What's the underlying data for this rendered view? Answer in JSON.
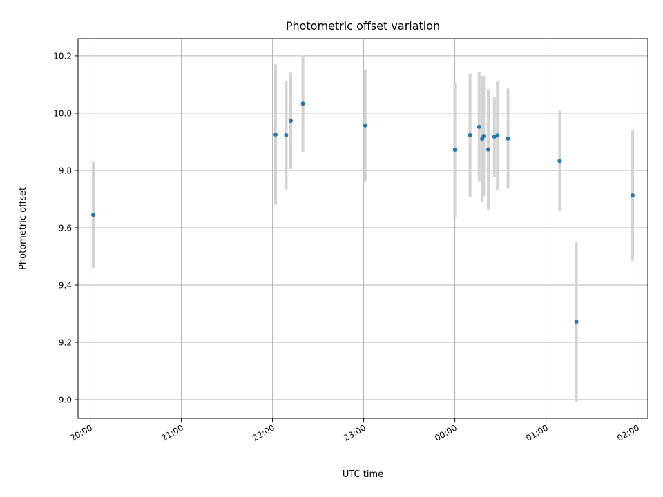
{
  "chart_data": {
    "type": "scatter",
    "title": "Photometric offset variation",
    "xlabel": "UTC time",
    "ylabel": "Photometric offset",
    "xlim": [
      "19:52",
      "02:07"
    ],
    "ylim": [
      8.935,
      10.26
    ],
    "x_ticks": [
      "20:00",
      "21:00",
      "22:00",
      "23:00",
      "00:00",
      "01:00",
      "02:00"
    ],
    "y_ticks": [
      "9.0",
      "9.2",
      "9.4",
      "9.6",
      "9.8",
      "10.0",
      "10.2"
    ],
    "grid": true,
    "colors": {
      "points": "#1f77b4",
      "errorbars": "#d3d3d3",
      "grid": "#b0b0b0"
    },
    "points": [
      {
        "x": "20:02",
        "y": 9.645,
        "err": 0.185
      },
      {
        "x": "22:02",
        "y": 9.925,
        "err": 0.245
      },
      {
        "x": "22:09",
        "y": 9.923,
        "err": 0.19
      },
      {
        "x": "22:12",
        "y": 9.973,
        "err": 0.168
      },
      {
        "x": "22:20",
        "y": 10.033,
        "err": 0.168
      },
      {
        "x": "23:01",
        "y": 9.957,
        "err": 0.195
      },
      {
        "x": "00:00",
        "y": 9.872,
        "err": 0.235
      },
      {
        "x": "00:10",
        "y": 9.923,
        "err": 0.215
      },
      {
        "x": "00:16",
        "y": 9.952,
        "err": 0.19
      },
      {
        "x": "00:18",
        "y": 9.91,
        "err": 0.22
      },
      {
        "x": "00:19",
        "y": 9.92,
        "err": 0.21
      },
      {
        "x": "00:22",
        "y": 9.873,
        "err": 0.21
      },
      {
        "x": "00:26",
        "y": 9.918,
        "err": 0.14
      },
      {
        "x": "00:28",
        "y": 9.922,
        "err": 0.19
      },
      {
        "x": "00:35",
        "y": 9.911,
        "err": 0.175
      },
      {
        "x": "01:09",
        "y": 9.833,
        "err": 0.175
      },
      {
        "x": "01:20",
        "y": 9.272,
        "err": 0.28
      },
      {
        "x": "01:57",
        "y": 9.713,
        "err": 0.228
      }
    ]
  }
}
